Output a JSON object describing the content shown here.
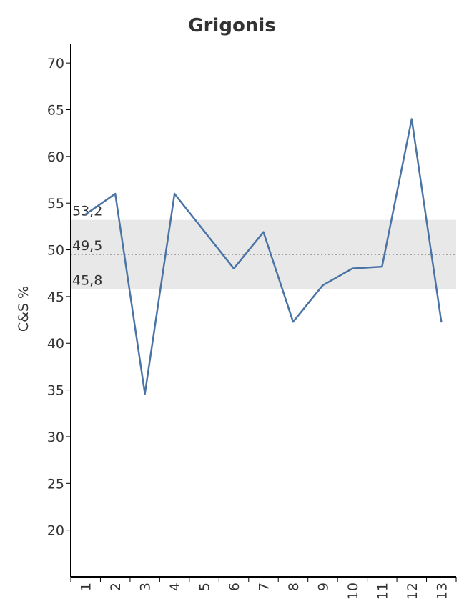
{
  "chart_data": {
    "type": "line",
    "title": "Grigonis",
    "xlabel": "",
    "ylabel": "C&S %",
    "categories": [
      "1",
      "2",
      "3",
      "4",
      "5",
      "6",
      "7",
      "8",
      "9",
      "10",
      "11",
      "12",
      "13"
    ],
    "series": [
      {
        "values": [
          53.8,
          56.0,
          34.6,
          56.0,
          52.0,
          48.0,
          51.9,
          42.3,
          46.2,
          48.0,
          48.2,
          64.0,
          42.3
        ]
      }
    ],
    "ylim": [
      15,
      72
    ],
    "yticks": [
      20,
      25,
      30,
      35,
      40,
      45,
      50,
      55,
      60,
      65,
      70
    ],
    "band": {
      "low": 45.8,
      "mid": 49.5,
      "high": 53.2
    },
    "band_labels": {
      "low": "45,8",
      "mid": "49,5",
      "high": "53,2"
    },
    "grid": false,
    "colors": {
      "line": "#4a74a5",
      "band": "#e8e8e8",
      "mean_line": "#999999"
    }
  }
}
